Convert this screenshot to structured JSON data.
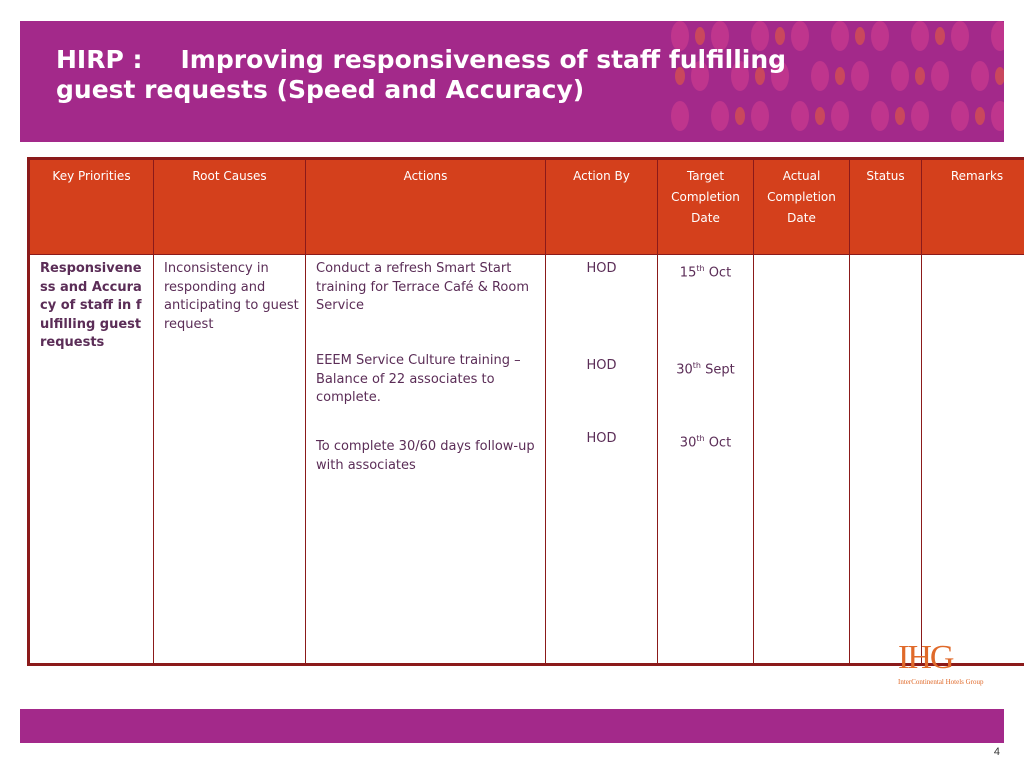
{
  "header": {
    "title_prefix": "HIRP :",
    "title_main": "Improving responsiveness of staff fulfilling",
    "title_line2": "guest requests (Speed and Accuracy)"
  },
  "table": {
    "columns": [
      "Key Priorities",
      "Root Causes",
      "Actions",
      "Action By",
      "Target Completion Date",
      "Actual Completion Date",
      "Status",
      "Remarks"
    ],
    "row": {
      "priority": "Responsiveness and Accuracy of staff in fulfilling guest requests",
      "root_cause": "Inconsistency in responding and anticipating to guest request",
      "actions": [
        "Conduct a refresh Smart Start training for Terrace Café & Room Service",
        "EEEM Service Culture training – Balance of 22 associates to complete.",
        "To complete 30/60 days follow-up with associates"
      ],
      "action_by": [
        "HOD",
        "HOD",
        "HOD"
      ],
      "target_dates": [
        {
          "day": "15",
          "suffix": "th",
          "month": "Oct"
        },
        {
          "day": "30",
          "suffix": "th",
          "month": "Sept"
        },
        {
          "day": "30",
          "suffix": "th",
          "month": "Oct"
        }
      ],
      "actual_date": "",
      "status": "",
      "remarks": ""
    }
  },
  "logo": {
    "mark": "IHG",
    "tagline": "InterContinental Hotels Group"
  },
  "colors": {
    "banner": "#a3298a",
    "header_cell": "#d4401c",
    "border": "#8b1a1a",
    "text": "#5b2d57",
    "logo": "#e06a2a"
  },
  "page_number": "4"
}
